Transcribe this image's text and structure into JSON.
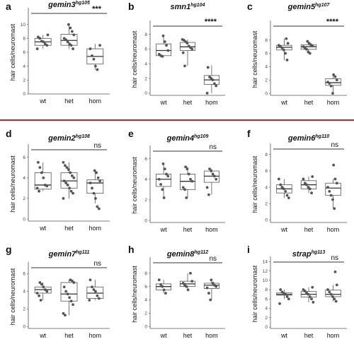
{
  "chart_data": [
    {
      "type": "box",
      "letter": "a",
      "gene": "gemin3",
      "allele": "hg105",
      "ylabel": "hair cells/neuromast",
      "categories": [
        "wt",
        "het",
        "hom"
      ],
      "ylim": [
        0,
        12
      ],
      "yticks": [
        0,
        2,
        4,
        6,
        8,
        10
      ],
      "significance": "***",
      "series": [
        {
          "name": "wt",
          "q1": 7,
          "median": 7.5,
          "q3": 8,
          "whisker_low": 6.5,
          "whisker_high": 8.5,
          "points": [
            6.5,
            7,
            7.2,
            7.5,
            7.6,
            8,
            8.2,
            8.5
          ]
        },
        {
          "name": "het",
          "q1": 7,
          "median": 7.7,
          "q3": 8.6,
          "whisker_low": 6.5,
          "whisker_high": 10,
          "points": [
            6.5,
            7,
            7.2,
            7.5,
            7.8,
            8,
            8.5,
            9,
            9.5,
            10
          ]
        },
        {
          "name": "hom",
          "q1": 4.3,
          "median": 5.4,
          "q3": 6.5,
          "whisker_low": 3.5,
          "whisker_high": 7.2,
          "points": [
            3.5,
            4,
            5,
            5.5,
            6.5,
            7
          ]
        }
      ]
    },
    {
      "type": "box",
      "letter": "b",
      "gene": "smn1",
      "allele": "hg104",
      "ylabel": "hair cells/neuromast",
      "categories": [
        "wt",
        "het",
        "hom"
      ],
      "ylim": [
        -0.3,
        9.5
      ],
      "yticks": [
        0,
        2,
        4,
        6,
        8
      ],
      "significance": "****",
      "series": [
        {
          "name": "wt",
          "q1": 5.1,
          "median": 5.8,
          "q3": 6.7,
          "whisker_low": 5,
          "whisker_high": 7.8,
          "points": [
            5,
            5.1,
            5.3,
            5.8,
            6.5,
            7,
            7.8
          ]
        },
        {
          "name": "het",
          "q1": 5.8,
          "median": 6.3,
          "q3": 6.9,
          "whisker_low": 3.7,
          "whisker_high": 7.3,
          "points": [
            3.7,
            5.5,
            6,
            6.2,
            6.4,
            6.8,
            7,
            7.2,
            7.3
          ]
        },
        {
          "name": "hom",
          "q1": 1.2,
          "median": 1.8,
          "q3": 2.4,
          "whisker_low": 0,
          "whisker_high": 3.8,
          "points": [
            0,
            1,
            1.3,
            1.8,
            2,
            2.2,
            3.5
          ]
        }
      ]
    },
    {
      "type": "box",
      "letter": "c",
      "gene": "gemin5",
      "allele": "hg107",
      "ylabel": "hair cells/neuromast",
      "categories": [
        "wt",
        "het",
        "hom"
      ],
      "ylim": [
        -0.3,
        10.5
      ],
      "yticks": [
        0,
        2,
        4,
        6,
        8
      ],
      "significance": "****",
      "series": [
        {
          "name": "wt",
          "q1": 6.5,
          "median": 6.9,
          "q3": 7.2,
          "whisker_low": 5,
          "whisker_high": 8.2,
          "points": [
            5,
            6,
            6.5,
            6.8,
            7,
            7.2,
            7.5,
            8.2
          ]
        },
        {
          "name": "het",
          "q1": 6.6,
          "median": 7,
          "q3": 7.3,
          "whisker_low": 6,
          "whisker_high": 7.8,
          "points": [
            6,
            6.2,
            6.6,
            6.8,
            7,
            7.1,
            7.3,
            7.5,
            7.8
          ]
        },
        {
          "name": "hom",
          "q1": 1.2,
          "median": 1.6,
          "q3": 2.2,
          "whisker_low": 0,
          "whisker_high": 2.8,
          "points": [
            0,
            1.1,
            1.5,
            1.7,
            2,
            2.5,
            2.8
          ]
        }
      ]
    },
    {
      "type": "box",
      "letter": "d",
      "gene": "gemin2",
      "allele": "hg108",
      "ylabel": "hair cells/neuromast",
      "categories": [
        "wt",
        "het",
        "hom"
      ],
      "ylim": [
        -0.2,
        7
      ],
      "yticks": [
        0,
        2,
        4,
        6
      ],
      "significance": "ns",
      "series": [
        {
          "name": "wt",
          "q1": 2.9,
          "median": 3.3,
          "q3": 4.5,
          "whisker_low": 2.7,
          "whisker_high": 5.5,
          "points": [
            2.7,
            3,
            3.2,
            3.3,
            4,
            4.5,
            5,
            5.5
          ]
        },
        {
          "name": "het",
          "q1": 3,
          "median": 3.7,
          "q3": 4.5,
          "whisker_low": 2,
          "whisker_high": 5.5,
          "points": [
            2,
            2.5,
            2.7,
            3,
            3.3,
            3.5,
            3.7,
            4,
            4.2,
            4.5,
            4.8,
            5,
            5.2,
            5.5
          ]
        },
        {
          "name": "hom",
          "q1": 2.5,
          "median": 3.5,
          "q3": 3.8,
          "whisker_low": 1.5,
          "whisker_high": 4.7,
          "points": [
            1,
            1.2,
            2,
            2.5,
            3,
            3.5,
            3.7,
            4,
            4.5,
            4.7
          ]
        }
      ]
    },
    {
      "type": "box",
      "letter": "e",
      "gene": "gemin4",
      "allele": "hg109",
      "ylabel": "hair cells/neuromast",
      "categories": [
        "wt",
        "het",
        "hom"
      ],
      "ylim": [
        -0.2,
        7
      ],
      "yticks": [
        0,
        2,
        4,
        6
      ],
      "significance": "ns",
      "series": [
        {
          "name": "wt",
          "q1": 3.3,
          "median": 4,
          "q3": 4.5,
          "whisker_low": 2.2,
          "whisker_high": 5.5,
          "points": [
            2.2,
            3,
            3.5,
            4,
            4.3,
            4.5,
            5,
            5.5
          ]
        },
        {
          "name": "het",
          "q1": 3,
          "median": 3.8,
          "q3": 4.5,
          "whisker_low": 2.2,
          "whisker_high": 5.2,
          "points": [
            2.2,
            3,
            3.2,
            3.8,
            4,
            4.5,
            5,
            5.2
          ]
        },
        {
          "name": "hom",
          "q1": 3.7,
          "median": 4.3,
          "q3": 4.8,
          "whisker_low": 2.5,
          "whisker_high": 5,
          "points": [
            2.5,
            3.2,
            4,
            4.3,
            4.5,
            4.8,
            5
          ]
        }
      ]
    },
    {
      "type": "box",
      "letter": "f",
      "gene": "gemin6",
      "allele": "hg110",
      "ylabel": "hair cells/neuromast",
      "categories": [
        "wt",
        "het",
        "hom"
      ],
      "ylim": [
        -0.3,
        9
      ],
      "yticks": [
        0,
        2,
        4,
        6,
        8
      ],
      "significance": "ns",
      "series": [
        {
          "name": "wt",
          "q1": 3.3,
          "median": 3.8,
          "q3": 4.3,
          "whisker_low": 2.7,
          "whisker_high": 5,
          "points": [
            2.7,
            3,
            3.5,
            3.8,
            4,
            4.3,
            5
          ]
        },
        {
          "name": "het",
          "q1": 3.8,
          "median": 4.3,
          "q3": 4.8,
          "whisker_low": 3.3,
          "whisker_high": 5.3,
          "points": [
            3.3,
            3.8,
            4,
            4.3,
            4.5,
            5,
            5.3
          ]
        },
        {
          "name": "hom",
          "q1": 3,
          "median": 3.9,
          "q3": 4.5,
          "whisker_low": 1.4,
          "whisker_high": 5,
          "points": [
            1.4,
            2.5,
            3,
            3.5,
            4,
            4.5,
            5,
            6.7
          ]
        }
      ]
    },
    {
      "type": "box",
      "letter": "g",
      "gene": "gemin7",
      "allele": "hg111",
      "ylabel": "hair cells/neuromast",
      "categories": [
        "wt",
        "het",
        "hom"
      ],
      "ylim": [
        -0.2,
        7
      ],
      "yticks": [
        0,
        2,
        4,
        6
      ],
      "significance": "ns",
      "series": [
        {
          "name": "wt",
          "q1": 3.8,
          "median": 4.2,
          "q3": 4.5,
          "whisker_low": 3,
          "whisker_high": 5,
          "points": [
            3,
            3.5,
            3.8,
            4,
            4.2,
            4.5,
            4.8,
            5
          ]
        },
        {
          "name": "het",
          "q1": 2.9,
          "median": 3.7,
          "q3": 5,
          "whisker_low": 1.3,
          "whisker_high": 5.3,
          "points": [
            1.3,
            1.5,
            2.5,
            2.9,
            3.3,
            3.7,
            4,
            4.5,
            5,
            5.2,
            5.3
          ]
        },
        {
          "name": "hom",
          "q1": 3.2,
          "median": 3.8,
          "q3": 4.5,
          "whisker_low": 3,
          "whisker_high": 5.3,
          "points": [
            3,
            3.2,
            3.5,
            4,
            4.2,
            4.5,
            5.3
          ]
        }
      ]
    },
    {
      "type": "box",
      "letter": "h",
      "gene": "gemin8",
      "allele": "hg112",
      "ylabel": "hair cells/neuromast",
      "categories": [
        "wt",
        "het",
        "hom"
      ],
      "ylim": [
        -0.3,
        10
      ],
      "yticks": [
        0,
        2,
        4,
        6,
        8
      ],
      "significance": "ns",
      "series": [
        {
          "name": "wt",
          "q1": 5.5,
          "median": 6,
          "q3": 6.4,
          "whisker_low": 5,
          "whisker_high": 7,
          "points": [
            5,
            5.5,
            6,
            6.3,
            7
          ]
        },
        {
          "name": "het",
          "q1": 6,
          "median": 6.4,
          "q3": 6.8,
          "whisker_low": 5.5,
          "whisker_high": 8,
          "points": [
            5.5,
            6,
            6.2,
            6.5,
            6.8,
            8
          ]
        },
        {
          "name": "hom",
          "q1": 5.7,
          "median": 6.2,
          "q3": 6.5,
          "whisker_low": 4,
          "whisker_high": 7,
          "points": [
            4,
            5,
            5.8,
            6,
            6.2,
            6.5,
            7
          ]
        }
      ]
    },
    {
      "type": "box",
      "letter": "i",
      "gene": "strap",
      "allele": "hg113",
      "ylabel": "hair cells/neuromast",
      "categories": [
        "wt",
        "het",
        "hom"
      ],
      "ylim": [
        -0.3,
        14.5
      ],
      "yticks": [
        0,
        2,
        4,
        6,
        8,
        10,
        12,
        14
      ],
      "significance": "ns",
      "series": [
        {
          "name": "wt",
          "q1": 6.8,
          "median": 7,
          "q3": 7.3,
          "whisker_low": 6,
          "whisker_high": 8,
          "points": [
            5,
            6,
            6.5,
            7,
            7.2,
            7.5,
            8
          ]
        },
        {
          "name": "het",
          "q1": 6.4,
          "median": 7,
          "q3": 7.6,
          "whisker_low": 5.3,
          "whisker_high": 8.5,
          "points": [
            5.3,
            6,
            6.5,
            7,
            7.3,
            7.7,
            8,
            8.5
          ]
        },
        {
          "name": "hom",
          "q1": 6.5,
          "median": 7,
          "q3": 7.9,
          "whisker_low": 5.5,
          "whisker_high": 9,
          "points": [
            5.5,
            6,
            6.5,
            7,
            7.5,
            8,
            9,
            11.8
          ]
        }
      ]
    }
  ],
  "colors": {
    "box_fill": "#ffffff",
    "box_stroke": "#555555",
    "point": "#555555",
    "axis": "#555555",
    "separator": "#c0282d"
  }
}
